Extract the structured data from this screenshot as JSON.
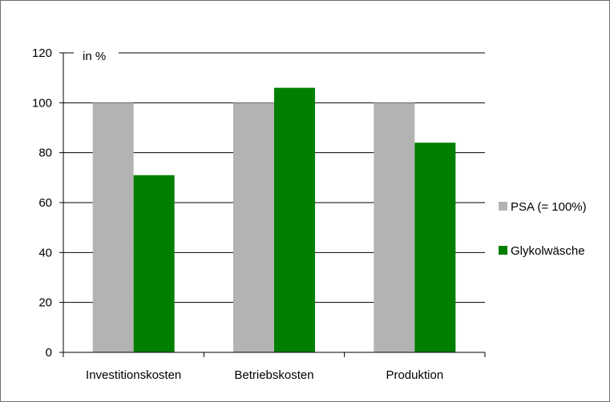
{
  "chart_data": {
    "type": "bar",
    "title": "",
    "xlabel": "",
    "ylabel": "in %",
    "categories": [
      "Investitionskosten",
      "Betriebskosten",
      "Produktion"
    ],
    "series": [
      {
        "name": "PSA (= 100%)",
        "values": [
          100,
          100,
          100
        ],
        "color": "#b3b3b3"
      },
      {
        "name": "Glykolwäsche",
        "values": [
          71,
          106,
          84
        ],
        "color": "#007f00"
      }
    ],
    "ylim": [
      0,
      120
    ],
    "yticks": [
      0,
      20,
      40,
      60,
      80,
      100,
      120
    ],
    "grid": true,
    "legend": "right"
  }
}
